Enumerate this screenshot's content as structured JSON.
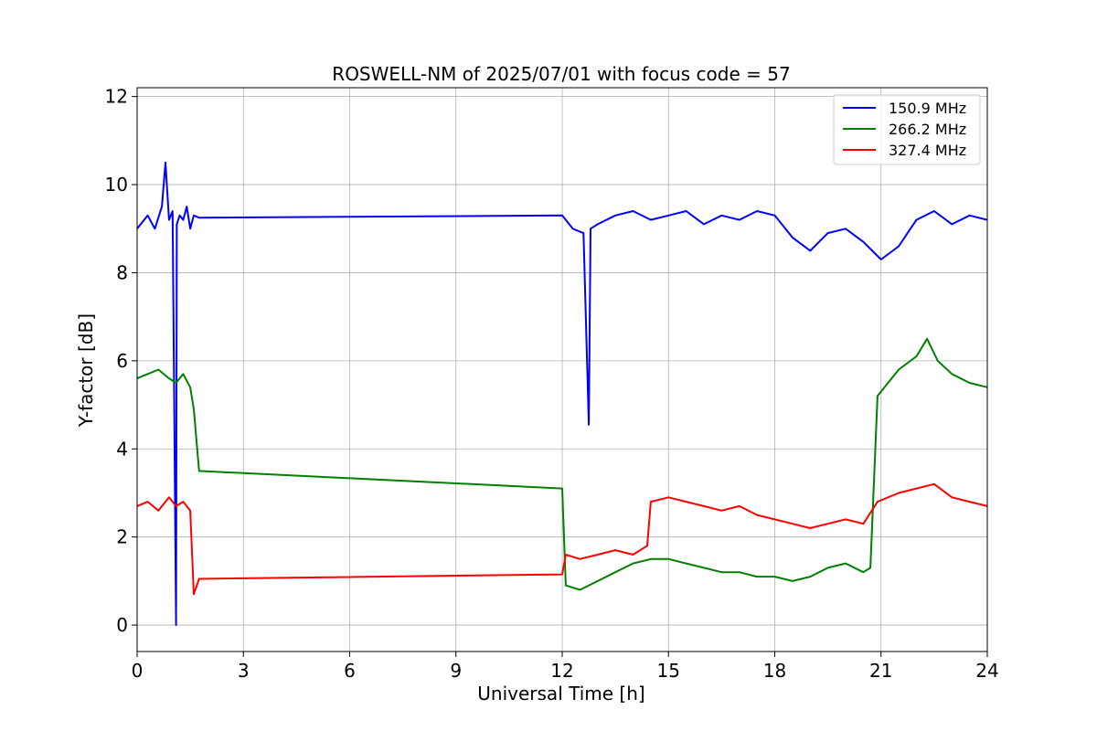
{
  "chart_data": {
    "type": "line",
    "title": "ROSWELL-NM of 2025/07/01 with focus code = 57",
    "xlabel": "Universal Time [h]",
    "ylabel": "Y-factor [dB]",
    "xlim": [
      0,
      24
    ],
    "ylim": [
      -0.6,
      12.2
    ],
    "xticks": [
      0,
      3,
      6,
      9,
      12,
      15,
      18,
      21,
      24
    ],
    "yticks": [
      0,
      2,
      4,
      6,
      8,
      10,
      12
    ],
    "grid": true,
    "legend_position": "top-right",
    "series": [
      {
        "name": "150.9 MHz",
        "color": "#0000ff",
        "x": [
          0,
          0.3,
          0.5,
          0.7,
          0.8,
          0.9,
          1.0,
          1.1,
          1.12,
          1.2,
          1.3,
          1.4,
          1.5,
          1.6,
          1.75,
          12.0,
          12.3,
          12.6,
          12.75,
          12.8,
          13.0,
          13.5,
          14.0,
          14.5,
          15.0,
          15.5,
          16.0,
          16.5,
          17.0,
          17.5,
          18.0,
          18.5,
          19.0,
          19.5,
          20.0,
          20.5,
          21.0,
          21.5,
          22.0,
          22.5,
          23.0,
          23.5,
          24.0
        ],
        "y": [
          9.0,
          9.3,
          9.0,
          9.5,
          10.5,
          9.2,
          9.4,
          0.0,
          9.1,
          9.3,
          9.2,
          9.5,
          9.0,
          9.3,
          9.25,
          9.3,
          9.0,
          8.9,
          4.55,
          9.0,
          9.1,
          9.3,
          9.4,
          9.2,
          9.3,
          9.4,
          9.1,
          9.3,
          9.2,
          9.4,
          9.3,
          8.8,
          8.5,
          8.9,
          9.0,
          8.7,
          8.3,
          8.6,
          9.2,
          9.4,
          9.1,
          9.3,
          9.2
        ]
      },
      {
        "name": "266.2 MHz",
        "color": "#008000",
        "x": [
          0,
          0.3,
          0.6,
          0.9,
          1.1,
          1.3,
          1.5,
          1.6,
          1.75,
          12.0,
          12.1,
          12.5,
          13.0,
          13.5,
          14.0,
          14.5,
          15.0,
          15.5,
          16.0,
          16.5,
          17.0,
          17.5,
          18.0,
          18.5,
          19.0,
          19.5,
          20.0,
          20.5,
          20.7,
          20.9,
          21.5,
          22.0,
          22.3,
          22.6,
          23.0,
          23.5,
          24.0
        ],
        "y": [
          5.6,
          5.7,
          5.8,
          5.6,
          5.5,
          5.7,
          5.4,
          4.9,
          3.5,
          3.1,
          0.9,
          0.8,
          1.0,
          1.2,
          1.4,
          1.5,
          1.5,
          1.4,
          1.3,
          1.2,
          1.2,
          1.1,
          1.1,
          1.0,
          1.1,
          1.3,
          1.4,
          1.2,
          1.3,
          5.2,
          5.8,
          6.1,
          6.5,
          6.0,
          5.7,
          5.5,
          5.4
        ]
      },
      {
        "name": "327.4 MHz",
        "color": "#ff0000",
        "x": [
          0,
          0.3,
          0.6,
          0.9,
          1.1,
          1.3,
          1.5,
          1.6,
          1.75,
          12.0,
          12.1,
          12.5,
          13.0,
          13.5,
          14.0,
          14.4,
          14.5,
          15.0,
          15.5,
          16.0,
          16.5,
          17.0,
          17.5,
          18.0,
          18.5,
          19.0,
          19.5,
          20.0,
          20.5,
          20.9,
          21.5,
          22.0,
          22.5,
          23.0,
          23.5,
          24.0
        ],
        "y": [
          2.7,
          2.8,
          2.6,
          2.9,
          2.7,
          2.8,
          2.6,
          0.7,
          1.05,
          1.15,
          1.6,
          1.5,
          1.6,
          1.7,
          1.6,
          1.8,
          2.8,
          2.9,
          2.8,
          2.7,
          2.6,
          2.7,
          2.5,
          2.4,
          2.3,
          2.2,
          2.3,
          2.4,
          2.3,
          2.8,
          3.0,
          3.1,
          3.2,
          2.9,
          2.8,
          2.7
        ]
      }
    ]
  }
}
